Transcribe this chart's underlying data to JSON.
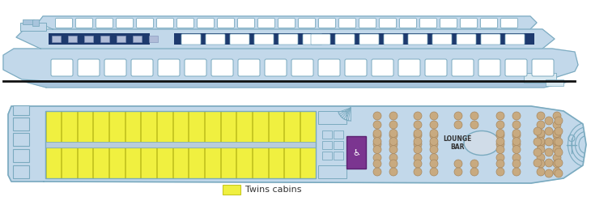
{
  "bg_color": "#ffffff",
  "ship_light_blue": "#c2d8ea",
  "ship_mid_blue": "#a8c4dc",
  "ship_dark_blue": "#1e3a6e",
  "ship_outline": "#7aaabf",
  "ship_outline_dark": "#4a7a9f",
  "yellow_cabin": "#f0f040",
  "yellow_cabin_border": "#c8c820",
  "tan_seat": "#c8aa80",
  "tan_seat_border": "#a88860",
  "purple_door": "#7b3590",
  "gray_corridor": "#b8ccdc",
  "text_color": "#333333",
  "lounge_bar_text": "LOUNGE\nBAR",
  "legend_text": "Twins cabins",
  "black_line": "#111111"
}
